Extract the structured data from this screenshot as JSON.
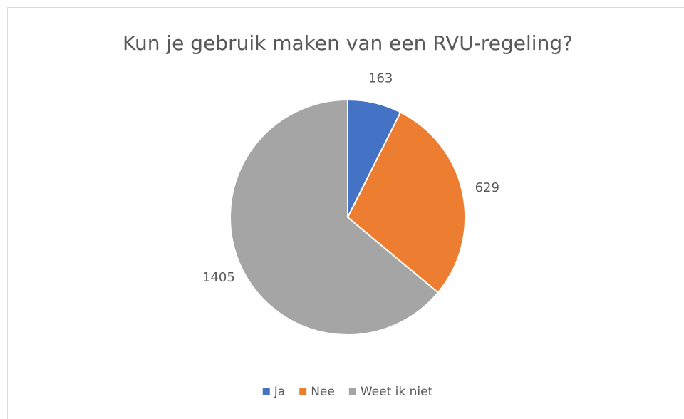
{
  "chart_data": {
    "type": "pie",
    "title": "Kun je gebruik maken van een RVU-regeling?",
    "categories": [
      "Ja",
      "Nee",
      "Weet ik niet"
    ],
    "values": [
      163,
      629,
      1405
    ],
    "colors": [
      "#4472c4",
      "#ed7d31",
      "#a5a5a5"
    ],
    "legend": "bottom"
  }
}
